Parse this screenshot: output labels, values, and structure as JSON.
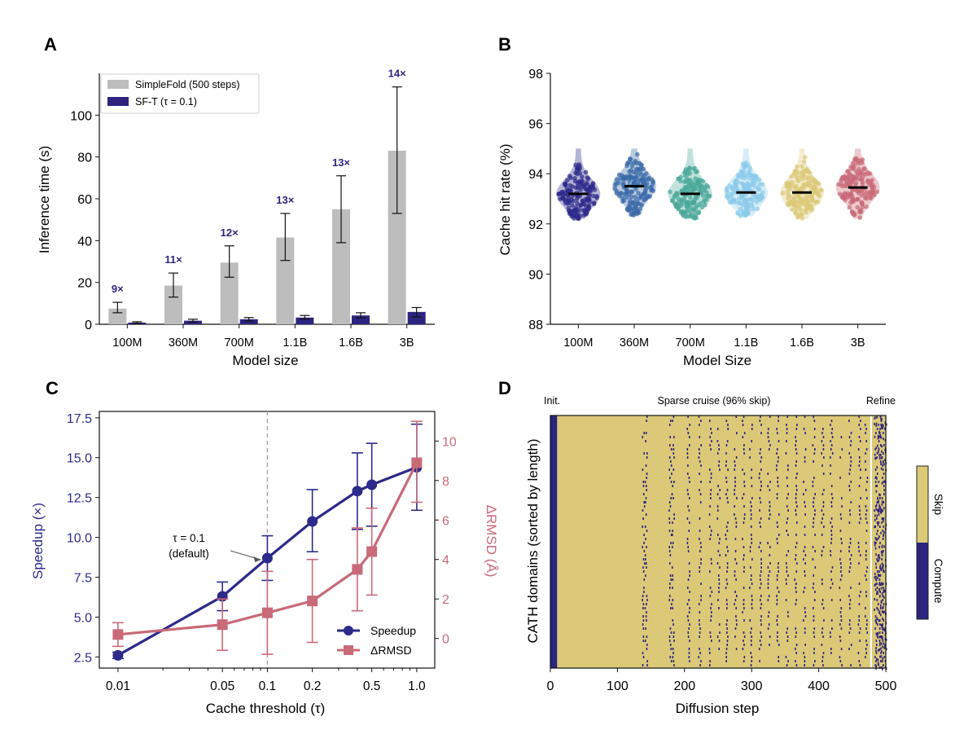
{
  "panels": {
    "A": {
      "letter": "A"
    },
    "B": {
      "letter": "B"
    },
    "C": {
      "letter": "C"
    },
    "D": {
      "letter": "D"
    }
  },
  "colors": {
    "simplefold": "#bdbdbd",
    "sft": "#2d2480",
    "speedup": "#2d2a8a",
    "rmsd": "#c96a78",
    "skip": "#dcc978",
    "compute": "#2d2480",
    "dashed_ref": "#9e9e9e"
  },
  "chart_data": [
    {
      "id": "A",
      "type": "bar",
      "categories": [
        "100M",
        "360M",
        "700M",
        "1.1B",
        "1.6B",
        "3B"
      ],
      "series": [
        {
          "name": "SimpleFold (500 steps)",
          "values": [
            7.5,
            18.5,
            29.5,
            41.5,
            55,
            83
          ],
          "err_low": [
            5.5,
            13,
            22.5,
            30.5,
            39,
            53
          ],
          "err_high": [
            10.5,
            24.5,
            37.5,
            53,
            71,
            113.5
          ]
        },
        {
          "name": "SF-T (τ = 0.1)",
          "values": [
            0.8,
            1.7,
            2.4,
            3.2,
            4.2,
            5.9
          ],
          "err_low": [
            0.4,
            1.0,
            1.5,
            2.4,
            3.0,
            3.5
          ],
          "err_high": [
            1.2,
            2.4,
            3.2,
            4.2,
            5.5,
            8.0
          ]
        }
      ],
      "annotations": [
        "9×",
        "11×",
        "12×",
        "13×",
        "13×",
        "14×"
      ],
      "xlabel": "Model size",
      "ylabel": "Inference time (s)",
      "ylim": [
        0,
        120
      ],
      "yticks": [
        "0",
        "20",
        "40",
        "60",
        "80",
        "100"
      ],
      "legend": "top-left"
    },
    {
      "id": "B",
      "type": "scatter",
      "categories": [
        "100M",
        "360M",
        "700M",
        "1.1B",
        "1.6B",
        "3B"
      ],
      "medians": [
        93.2,
        93.5,
        93.2,
        93.25,
        93.25,
        93.45
      ],
      "ranges": [
        [
          92.2,
          95.0
        ],
        [
          92.3,
          95.0
        ],
        [
          92.2,
          95.0
        ],
        [
          92.3,
          95.0
        ],
        [
          92.2,
          95.0
        ],
        [
          92.2,
          95.0
        ]
      ],
      "series_colors": [
        "#2d2a8a",
        "#3a6aa8",
        "#4aa89a",
        "#8ccbea",
        "#dcc978",
        "#c96a78"
      ],
      "xlabel": "Model Size",
      "ylabel": "Cache hit rate (%)",
      "ylim": [
        88,
        98
      ],
      "yticks": [
        "88",
        "90",
        "92",
        "94",
        "96",
        "98"
      ]
    },
    {
      "id": "C",
      "type": "line",
      "x": [
        0.01,
        0.05,
        0.1,
        0.2,
        0.4,
        0.5,
        1.0
      ],
      "xticks": [
        "0.01",
        "0.05",
        "0.1",
        "0.2",
        "0.5",
        "1.0"
      ],
      "xscale": "log",
      "series": [
        {
          "name": "Speedup",
          "axis": "left",
          "values": [
            2.6,
            6.3,
            8.7,
            11.0,
            12.9,
            13.3,
            14.4
          ],
          "err_low": [
            2.4,
            5.4,
            7.3,
            9.1,
            10.5,
            10.7,
            11.7
          ],
          "err_high": [
            2.8,
            7.2,
            10.1,
            13.0,
            15.3,
            15.9,
            17.1
          ]
        },
        {
          "name": "ΔRMSD",
          "axis": "right",
          "values": [
            0.2,
            0.7,
            1.3,
            1.9,
            3.5,
            4.4,
            8.9
          ],
          "err_low": [
            -0.4,
            -0.6,
            -0.8,
            -0.2,
            1.4,
            2.2,
            6.9
          ],
          "err_high": [
            0.8,
            2.0,
            3.4,
            4.0,
            5.6,
            6.6,
            11.0
          ]
        }
      ],
      "xlabel": "Cache threshold (τ)",
      "ylabel": "Speedup (×)",
      "ylabel_right": "ΔRMSD (Å)",
      "ylim": [
        1.8,
        17.9
      ],
      "ylim_right": [
        -1.5,
        11.5
      ],
      "yticks": [
        "2.5",
        "5.0",
        "7.5",
        "10.0",
        "12.5",
        "15.0",
        "17.5"
      ],
      "yticks_right": [
        "0",
        "2",
        "4",
        "6",
        "8",
        "10"
      ],
      "annotation": {
        "line1": "τ = 0.1",
        "line2": "(default)"
      },
      "legend": "bottom-right"
    },
    {
      "id": "D",
      "type": "heatmap",
      "xlim": [
        0,
        500
      ],
      "xticks": [
        "0",
        "100",
        "200",
        "300",
        "400",
        "500"
      ],
      "xlabel": "Diffusion step",
      "ylabel": "CATH domains (sorted by length)",
      "phases": {
        "init": "Init.",
        "cruise": "Sparse cruise (96% skip)",
        "refine": "Refine"
      },
      "init_steps": [
        0,
        10
      ],
      "refine_start": 478,
      "compute_columns": [
        138,
        142,
        178,
        182,
        205,
        222,
        238,
        250,
        262,
        275,
        287,
        298,
        312,
        325,
        338,
        352,
        365,
        378,
        392,
        405,
        418,
        432,
        446,
        460,
        470,
        485,
        490,
        495
      ],
      "colorbar": {
        "top": "Skip",
        "bottom": "Compute"
      }
    }
  ]
}
